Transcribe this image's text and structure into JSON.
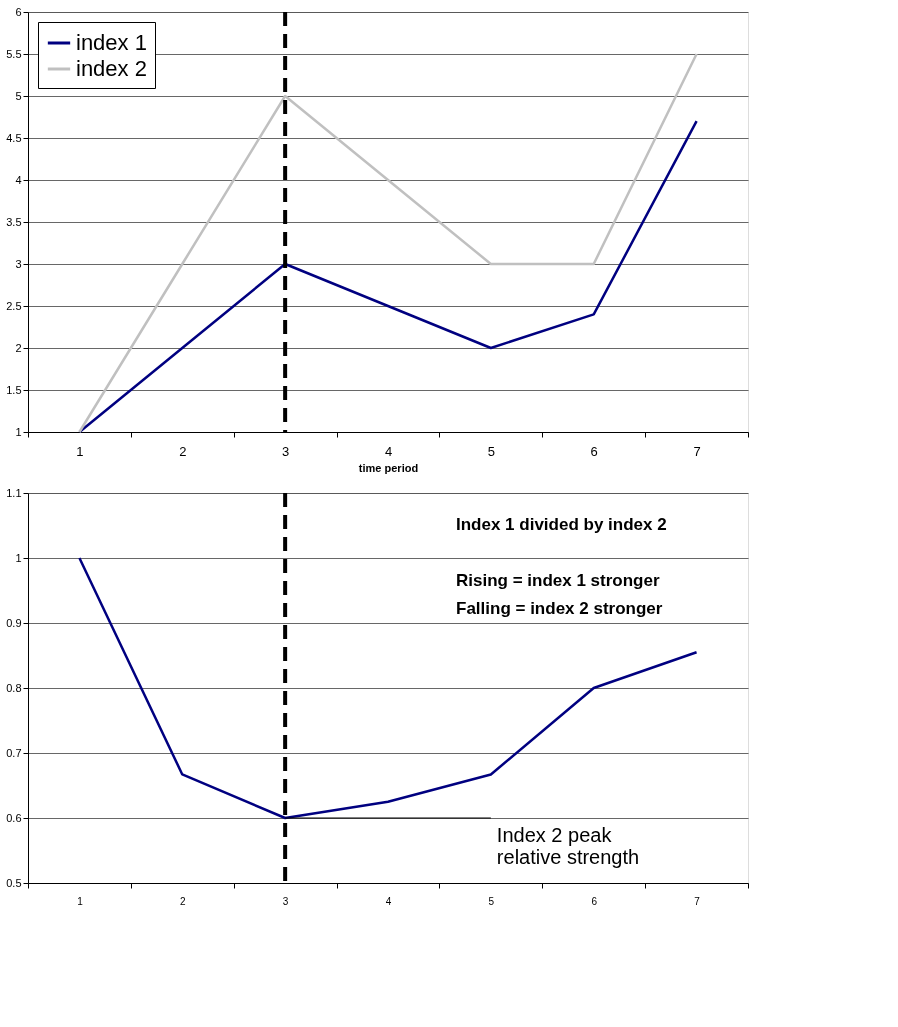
{
  "chart_data": [
    {
      "type": "line",
      "categories": [
        "1",
        "2",
        "3",
        "4",
        "5",
        "6",
        "7"
      ],
      "xlabel": "time period",
      "ylim": [
        1,
        6
      ],
      "yticks": [
        1,
        1.5,
        2,
        2.5,
        3,
        3.5,
        4,
        4.5,
        5,
        5.5,
        6
      ],
      "grid": "y",
      "legend": "top left",
      "marker": "none",
      "line_style": "solid",
      "series": [
        {
          "name": "index 1",
          "color": "#000080",
          "values": [
            1,
            2,
            3,
            2.5,
            2,
            2.4,
            4.7
          ]
        },
        {
          "name": "index 2",
          "color": "#c0c0c0",
          "values": [
            1,
            3,
            5,
            4,
            3,
            3,
            5.5
          ]
        }
      ],
      "ref_lines": [
        {
          "axis": "x",
          "value": "3",
          "color": "#000000",
          "line_style": "dashed"
        }
      ]
    },
    {
      "type": "line",
      "categories": [
        "1",
        "2",
        "3",
        "4",
        "5",
        "6",
        "7"
      ],
      "ylim": [
        0.5,
        1.1
      ],
      "yticks": [
        0.5,
        0.6,
        0.7,
        0.8,
        0.9,
        1,
        1.1
      ],
      "grid": "y",
      "legend": false,
      "marker": "none",
      "line_style": "solid",
      "series": [
        {
          "color": "#000080",
          "values": [
            1,
            0.667,
            0.6,
            0.625,
            0.667,
            0.8,
            0.855
          ]
        }
      ],
      "ref_lines": [
        {
          "axis": "x",
          "value": "3",
          "color": "#000000",
          "line_style": "dashed"
        }
      ],
      "annotations": [
        "Index 1 divided by index 2",
        "Rising = index 1 stronger",
        "Falling = index 2 stronger",
        {
          "text": "Index 2 peak\nrelative strength",
          "x": "3",
          "y": 0.6
        }
      ]
    }
  ]
}
